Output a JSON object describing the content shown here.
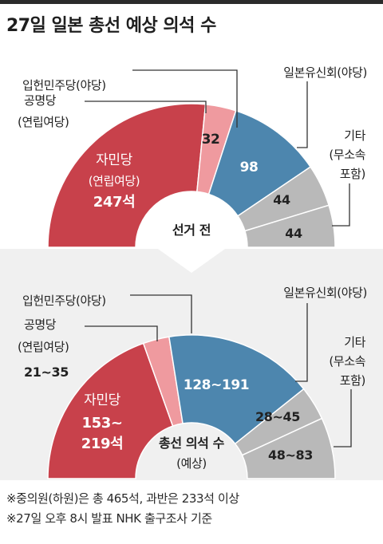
{
  "title": "27일 일본 총선 예상 의석 수",
  "colors": {
    "ldp": "#c8414b",
    "komeito": "#ef9a9f",
    "cdp": "#4d86ae",
    "ishin": "#b9b9b9",
    "others": "#b9b9b9",
    "leader": "#333333"
  },
  "chart_data": [
    {
      "type": "pie",
      "variant": "semicircle-donut",
      "center_label": "선거 전",
      "series": [
        {
          "key": "ldp",
          "label": "자민당",
          "sublabel": "(연립여당)",
          "value": 247,
          "value_label": "247석"
        },
        {
          "key": "komeito",
          "label": "공명당",
          "sublabel": "(연립여당)",
          "value": 32,
          "value_label": "32"
        },
        {
          "key": "cdp",
          "label": "입헌민주당(야당)",
          "value": 98,
          "value_label": "98"
        },
        {
          "key": "ishin",
          "label": "일본유신회(야당)",
          "value": 44,
          "value_label": "44"
        },
        {
          "key": "others",
          "label": "기타",
          "sublabel": "(무소속",
          "sublabel2": "포함)",
          "value": 44,
          "value_label": "44"
        }
      ]
    },
    {
      "type": "pie",
      "variant": "semicircle-donut",
      "center_label": "총선 의석 수",
      "center_sublabel": "(예상)",
      "series": [
        {
          "key": "ldp",
          "label": "자민당",
          "value": [
            153,
            219
          ],
          "value_label": "153~",
          "value_label2": "219석"
        },
        {
          "key": "komeito",
          "label": "공명당",
          "sublabel": "(연립여당)",
          "value": [
            21,
            35
          ],
          "value_label": "21~35"
        },
        {
          "key": "cdp",
          "label": "입헌민주당(야당)",
          "value": [
            128,
            191
          ],
          "value_label": "128~191"
        },
        {
          "key": "ishin",
          "label": "일본유신회(야당)",
          "value": [
            28,
            45
          ],
          "value_label": "28~45"
        },
        {
          "key": "others",
          "label": "기타",
          "sublabel": "(무소속",
          "sublabel2": "포함)",
          "value": [
            48,
            83
          ],
          "value_label": "48~83"
        }
      ]
    }
  ],
  "notes": [
    "※중의원(하원)은 총 465석, 과반은 233석 이상",
    "※27일 오후 8시 발표 NHK 출구조사 기준"
  ]
}
